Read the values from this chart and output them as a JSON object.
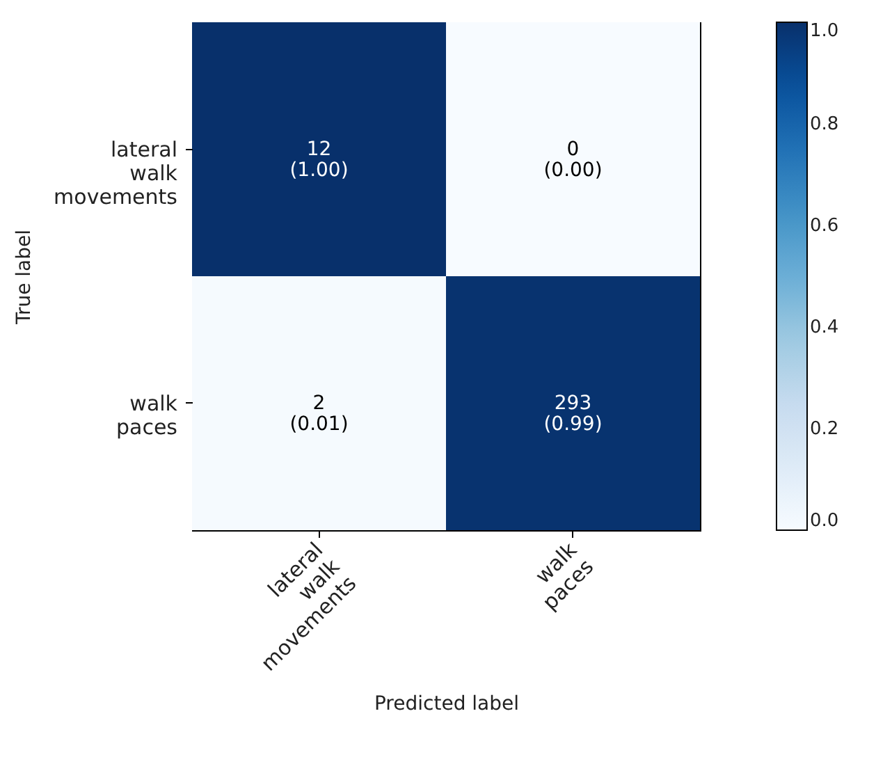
{
  "chart_data": {
    "type": "heatmap",
    "xlabel": "Predicted label",
    "ylabel": "True label",
    "categories": [
      "lateral\nwalk\nmovements",
      "walk\npaces"
    ],
    "y_categories": [
      "lateral\nwalk\nmovements",
      "walk\npaces"
    ],
    "cells": [
      [
        1.0,
        0.0
      ],
      [
        0.01,
        0.99
      ]
    ],
    "cell_labels": [
      [
        "12\n(1.00)",
        "0\n(0.00)"
      ],
      [
        "2\n(0.01)",
        "293\n(0.99)"
      ]
    ],
    "clim": [
      0,
      1
    ],
    "cticks": [
      {
        "value": 0,
        "label": "0.0"
      },
      {
        "value": 0.2,
        "label": "0.2"
      },
      {
        "value": 0.4,
        "label": "0.4"
      },
      {
        "value": 0.6,
        "label": "0.6"
      },
      {
        "value": 0.8,
        "label": "0.8"
      },
      {
        "value": 1,
        "label": "1.0"
      }
    ]
  }
}
